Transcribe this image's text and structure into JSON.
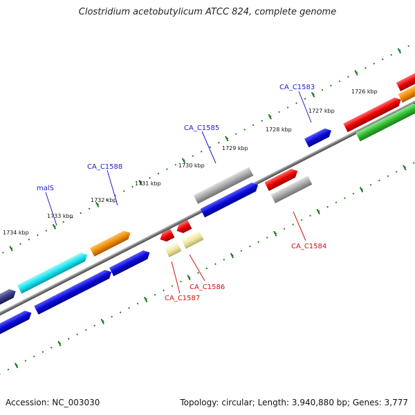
{
  "title": "Clostridium acetobutylicum ATCC 824, complete genome",
  "footer": {
    "accession": "Accession: NC_003030",
    "summary": "Topology: circular; Length: 3,940,880 bp; Genes: 3,777"
  },
  "ruler": {
    "ticks": [
      "1726 kbp",
      "1727 kbp",
      "1728 kbp",
      "1729 kbp",
      "1730 kbp",
      "1731 kbp",
      "1732 kbp",
      "1733 kbp",
      "1734 kbp"
    ]
  },
  "gene_labels": [
    {
      "name": "CA_C1583",
      "color": "#1a1acc"
    },
    {
      "name": "CA_C1585",
      "color": "#1a1acc"
    },
    {
      "name": "CA_C1588",
      "color": "#1a1acc"
    },
    {
      "name": "malS",
      "color": "#1a1acc"
    },
    {
      "name": "CA_C1584",
      "color": "#cc1111"
    },
    {
      "name": "CA_C1586",
      "color": "#cc1111"
    },
    {
      "name": "CA_C1587",
      "color": "#cc1111"
    }
  ],
  "colors": {
    "backbone": "#7a7a7a",
    "tick": "#1e7a1e",
    "gene_blue": "#0a0ad8",
    "gene_cyan": "#19e5ee",
    "gene_orange": "#f08c08",
    "gene_gray": "#a8a8a8",
    "gene_red": "#ee0000",
    "gene_yellow": "#eee8a0",
    "gene_green": "#33bb33",
    "gene_navy": "#3a3a80"
  }
}
